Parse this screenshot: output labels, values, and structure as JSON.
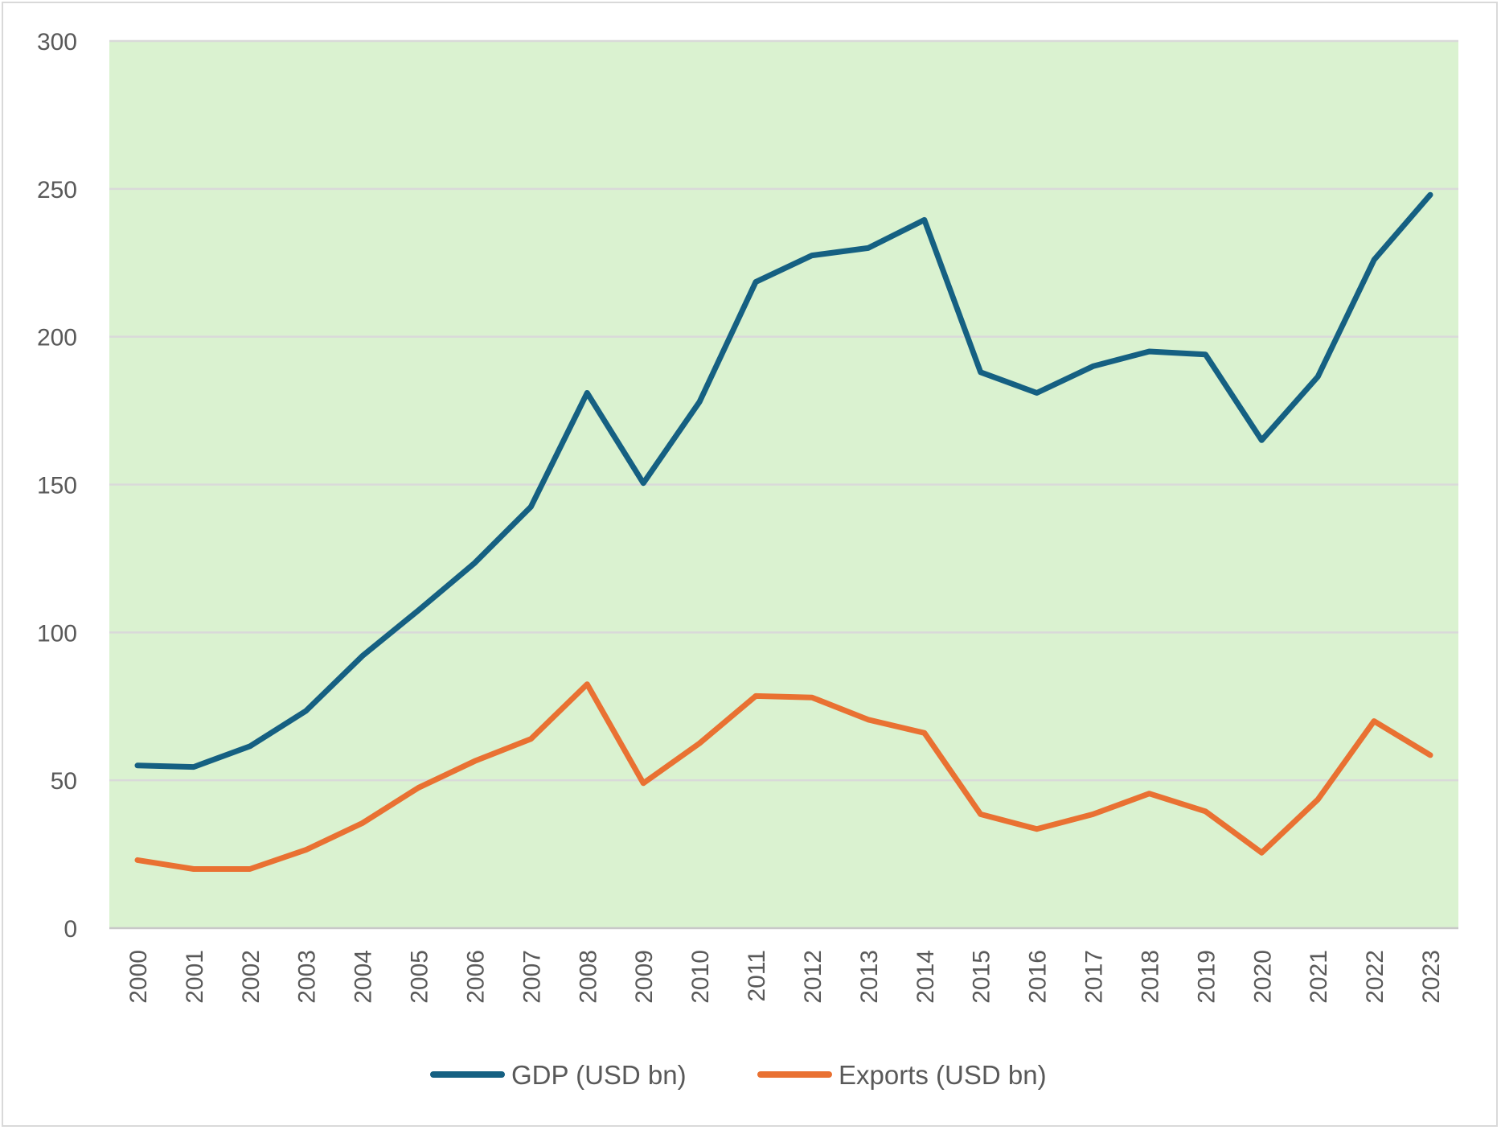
{
  "chart_data": {
    "type": "line",
    "title": "",
    "xlabel": "",
    "ylabel": "",
    "ylim": [
      0,
      300
    ],
    "yticks": [
      0,
      50,
      100,
      150,
      200,
      250,
      300
    ],
    "grid": true,
    "legend_position": "bottom",
    "plot_background": "#daf2d0",
    "categories": [
      "2000",
      "2001",
      "2002",
      "2003",
      "2004",
      "2005",
      "2006",
      "2007",
      "2008",
      "2009",
      "2010",
      "2011",
      "2012",
      "2013",
      "2014",
      "2015",
      "2016",
      "2017",
      "2018",
      "2019",
      "2020",
      "2021",
      "2022",
      "2023"
    ],
    "series": [
      {
        "name": "GDP (USD bn)",
        "color": "#156082",
        "values": [
          55.0,
          54.5,
          61.5,
          73.5,
          92.0,
          107.5,
          123.5,
          142.5,
          181.0,
          150.5,
          178.0,
          218.5,
          227.5,
          230.0,
          239.5,
          188.0,
          181.0,
          190.0,
          195.0,
          194.0,
          165.0,
          186.5,
          226.0,
          248.0
        ]
      },
      {
        "name": "Exports (USD bn)",
        "color": "#e97132",
        "values": [
          23.0,
          20.0,
          20.0,
          26.5,
          35.5,
          47.5,
          56.5,
          64.0,
          82.5,
          49.0,
          62.5,
          78.5,
          78.0,
          70.5,
          66.0,
          38.5,
          33.5,
          38.5,
          45.5,
          39.5,
          25.5,
          43.5,
          70.0,
          58.5
        ]
      }
    ]
  }
}
